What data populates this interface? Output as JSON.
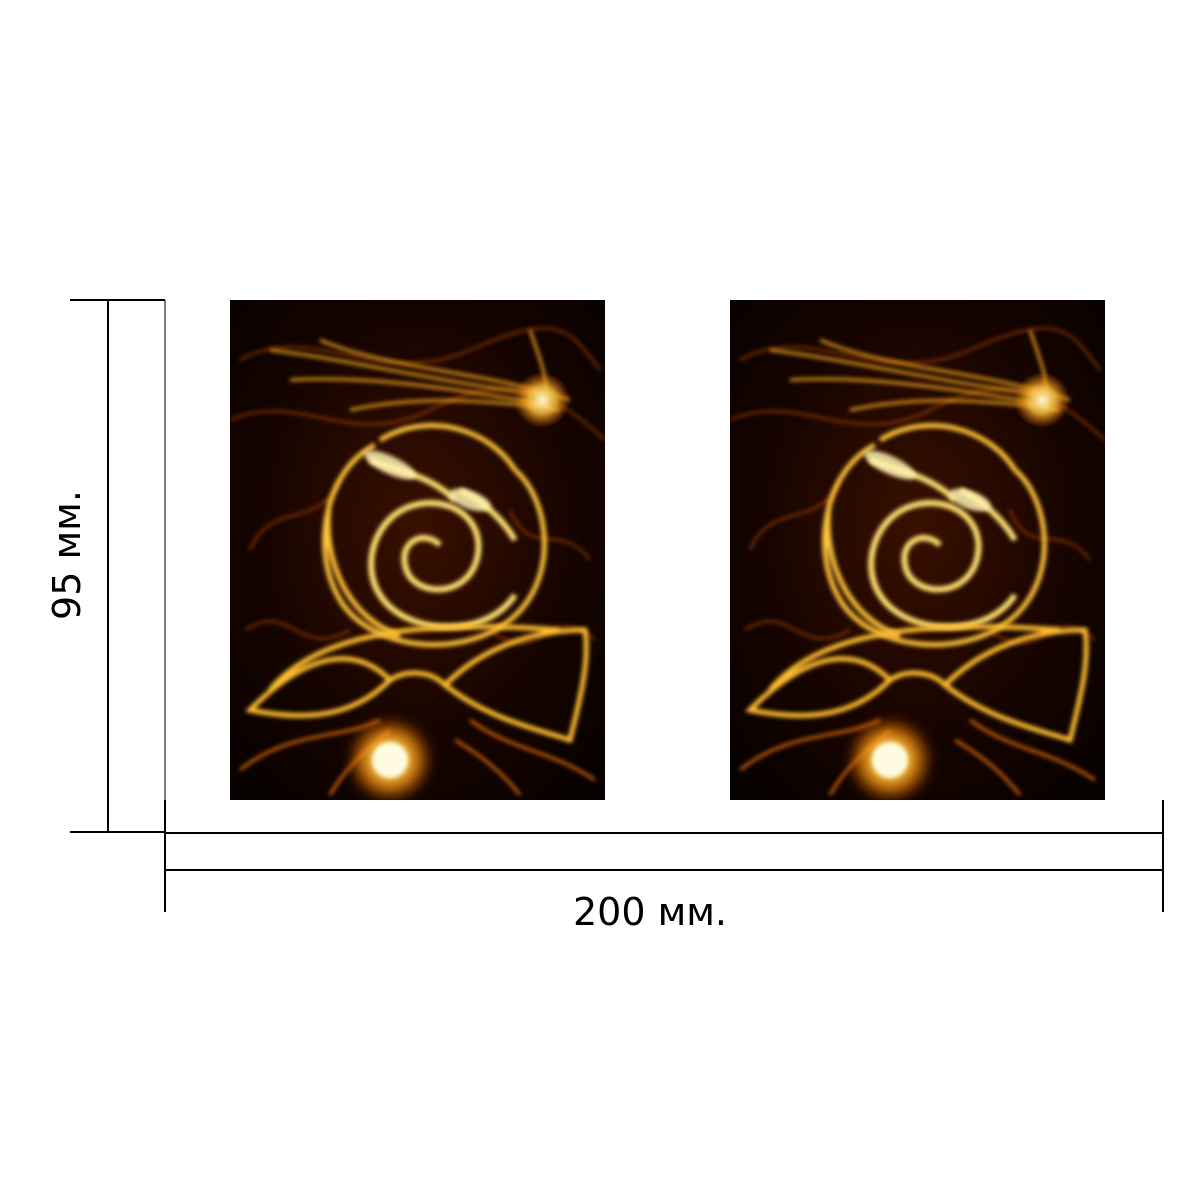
{
  "dimensions": {
    "height_label": "95 мм.",
    "width_label": "200 мм."
  },
  "panels": [
    {
      "image": "fire-rose-artwork"
    },
    {
      "image": "fire-rose-artwork"
    }
  ],
  "colors": {
    "background": "#ffffff",
    "line": "#000000",
    "artwork_dark": "#0a0200",
    "flame_orange": "#ff8c00",
    "flame_yellow": "#ffd84a"
  }
}
